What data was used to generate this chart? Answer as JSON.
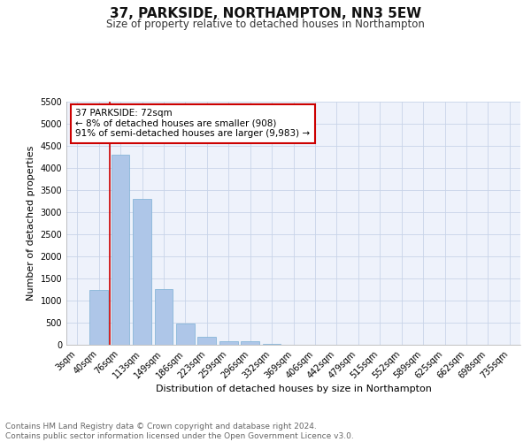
{
  "title": "37, PARKSIDE, NORTHAMPTON, NN3 5EW",
  "subtitle": "Size of property relative to detached houses in Northampton",
  "xlabel": "Distribution of detached houses by size in Northampton",
  "ylabel": "Number of detached properties",
  "bar_labels": [
    "3sqm",
    "40sqm",
    "76sqm",
    "113sqm",
    "149sqm",
    "186sqm",
    "223sqm",
    "259sqm",
    "296sqm",
    "332sqm",
    "369sqm",
    "406sqm",
    "442sqm",
    "479sqm",
    "515sqm",
    "552sqm",
    "589sqm",
    "625sqm",
    "662sqm",
    "698sqm",
    "735sqm"
  ],
  "bar_values": [
    0,
    1250,
    4300,
    3300,
    1270,
    480,
    190,
    85,
    75,
    30,
    0,
    0,
    0,
    0,
    0,
    0,
    0,
    0,
    0,
    0,
    0
  ],
  "bar_color": "#aec6e8",
  "bar_edge_color": "#7bafd4",
  "vline_color": "#cc0000",
  "annotation_text": "37 PARKSIDE: 72sqm\n← 8% of detached houses are smaller (908)\n91% of semi-detached houses are larger (9,983) →",
  "annotation_box_color": "#ffffff",
  "annotation_border_color": "#cc0000",
  "ylim": [
    0,
    5500
  ],
  "yticks": [
    0,
    500,
    1000,
    1500,
    2000,
    2500,
    3000,
    3500,
    4000,
    4500,
    5000,
    5500
  ],
  "footer": "Contains HM Land Registry data © Crown copyright and database right 2024.\nContains public sector information licensed under the Open Government Licence v3.0.",
  "background_color": "#eef2fb",
  "grid_color": "#c8d4e8",
  "title_fontsize": 11,
  "subtitle_fontsize": 8.5,
  "ylabel_fontsize": 8,
  "xlabel_fontsize": 8,
  "tick_fontsize": 7,
  "footer_fontsize": 6.5
}
